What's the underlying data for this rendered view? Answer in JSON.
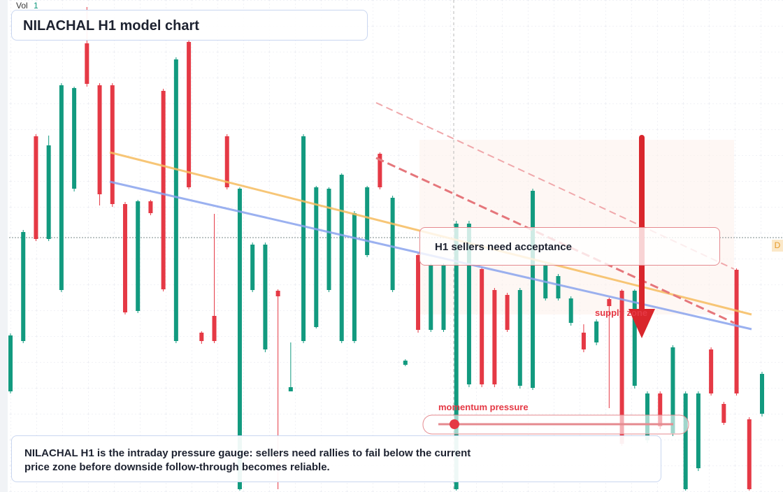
{
  "chart_data": {
    "type": "candlestick",
    "title": "NILACHAL H1 model chart",
    "volume_label": "Vol",
    "volume_value": "1",
    "annotations": {
      "zone": "H1 sellers need acceptance",
      "supply": "supply zone",
      "momentum": "momentum pressure",
      "edge_tag": "D"
    },
    "description": "NILACHAL H1 is the intraday pressure gauge: sellers need rallies to fail below the current price zone before downside follow-through becomes reliable.",
    "up_color": "#129a7f",
    "down_color": "#e53945",
    "ylim": [
      0,
      704
    ],
    "open": [
      144,
      216,
      509,
      362,
      289,
      434,
      642,
      582,
      582,
      412,
      259,
      416,
      574,
      216,
      644,
      228,
      252,
      509,
      4,
      289,
      204,
      288,
      144,
      216,
      236,
      289,
      216,
      216,
      339,
      484,
      289,
      182,
      339,
      232,
      232,
      4,
      154,
      319,
      289,
      282,
      152,
      149,
      277,
      277,
      242,
      228,
      214,
      276,
      288,
      152,
      74,
      141,
      84,
      4,
      34,
      204,
      126,
      318,
      104,
      112
    ],
    "high": [
      227,
      375,
      512,
      510,
      585,
      580,
      694,
      585,
      585,
      415,
      418,
      418,
      577,
      622,
      648,
      230,
      398,
      512,
      436,
      357,
      357,
      290,
      214,
      512,
      438,
      436,
      456,
      402,
      438,
      486,
      424,
      190,
      342,
      327,
      327,
      388,
      388,
      322,
      292,
      285,
      292,
      434,
      327,
      312,
      280,
      240,
      247,
      278,
      290,
      290,
      144,
      144,
      210,
      144,
      144,
      207,
      129,
      320,
      107,
      172
    ],
    "low": [
      141,
      213,
      359,
      359,
      286,
      430,
      580,
      410,
      408,
      254,
      256,
      396,
      287,
      213,
      433,
      212,
      213,
      433,
      2,
      286,
      200,
      4,
      144,
      213,
      234,
      286,
      213,
      213,
      336,
      433,
      286,
      180,
      228,
      229,
      229,
      2,
      150,
      150,
      150,
      229,
      148,
      146,
      274,
      274,
      238,
      200,
      210,
      120,
      66,
      148,
      70,
      90,
      80,
      2,
      30,
      138,
      96,
      138,
      2,
      108
    ],
    "close": [
      224,
      372,
      362,
      496,
      582,
      578,
      584,
      426,
      412,
      257,
      416,
      399,
      290,
      619,
      436,
      216,
      216,
      436,
      434,
      354,
      354,
      280,
      150,
      509,
      436,
      434,
      454,
      399,
      436,
      436,
      421,
      188,
      232,
      324,
      324,
      384,
      384,
      154,
      154,
      232,
      289,
      431,
      324,
      309,
      277,
      204,
      244,
      266,
      69,
      288,
      141,
      94,
      207,
      141,
      141,
      141,
      99,
      141,
      4,
      169
    ]
  }
}
